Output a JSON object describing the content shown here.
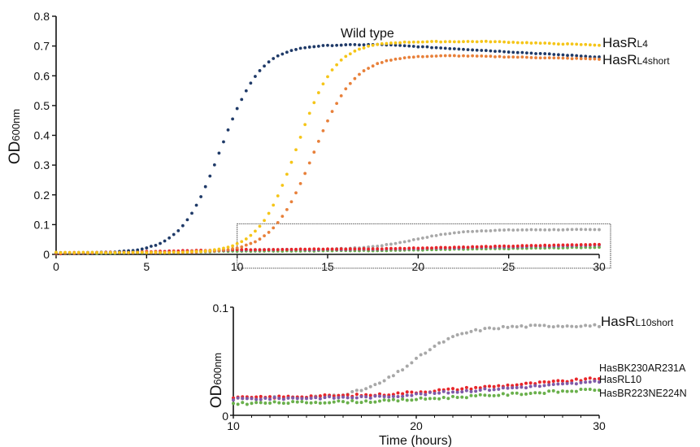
{
  "chart_data": [
    {
      "type": "scatter",
      "ylabel": "OD",
      "ylabel_sub": "600nm",
      "xlim": [
        0,
        30
      ],
      "ylim": [
        0,
        0.8
      ],
      "xticks": [
        0,
        5,
        10,
        15,
        20,
        25,
        30
      ],
      "xtick_labels": [
        "0",
        "5",
        "10",
        "15",
        "20",
        "25",
        "30"
      ],
      "yticks": [
        0,
        0.1,
        0.2,
        0.3,
        0.4,
        0.5,
        0.6,
        0.7,
        0.8
      ],
      "ytick_labels": [
        "0",
        "0.1",
        "0.2",
        "0.3",
        "0.4",
        "0.5",
        "0.6",
        "0.7",
        "0.8"
      ],
      "grid": false,
      "legend": "none",
      "inset_box": {
        "x": [
          10,
          30
        ],
        "y": [
          0,
          0.1
        ]
      },
      "annotations": [
        {
          "text": "Wild type",
          "x": 15.8,
          "y": 0.705
        },
        {
          "main": "HasR",
          "sub": "L4",
          "series": "HasRL4"
        },
        {
          "main": "HasR",
          "sub": "L4short",
          "series": "HasRL4short"
        }
      ],
      "series": [
        {
          "name": "Wild type",
          "color": "#1f3a68",
          "model": {
            "kind": "logistic",
            "base": 0.005,
            "top": 0.705,
            "mid": 9.1,
            "rate": 0.9,
            "decline_start": 18,
            "decline_slope": -0.0035
          }
        },
        {
          "name": "HasRL4",
          "color": "#f5c518",
          "model": {
            "kind": "logistic",
            "base": 0.006,
            "top": 0.715,
            "mid": 13.3,
            "rate": 0.95,
            "decline_start": 24,
            "decline_slope": -0.002
          }
        },
        {
          "name": "HasRL4short",
          "color": "#e8803a",
          "model": {
            "kind": "logistic",
            "base": 0.006,
            "top": 0.668,
            "mid": 14.2,
            "rate": 0.88,
            "decline_start": 22,
            "decline_slope": -0.0015
          }
        },
        {
          "name": "HasRL10short",
          "color": "#a8a8a8",
          "model": {
            "kind": "logistic",
            "base": 0.016,
            "top": 0.083,
            "mid": 19.8,
            "rate": 0.75
          }
        },
        {
          "name": "HasBK230AR231A",
          "color": "#e8262a",
          "model": {
            "kind": "linear",
            "y0": 0.003,
            "y10": 0.016,
            "y18": 0.019,
            "y30": 0.034
          }
        },
        {
          "name": "HasRL10",
          "color": "#7f5aa8",
          "model": {
            "kind": "linear",
            "y0": 0.003,
            "y10": 0.015,
            "y18": 0.017,
            "y30": 0.031
          }
        },
        {
          "name": "HasBR223NE224N",
          "color": "#6ab04c",
          "model": {
            "kind": "linear",
            "y0": 0.002,
            "y10": 0.011,
            "y18": 0.013,
            "y30": 0.024
          }
        }
      ]
    },
    {
      "type": "scatter",
      "xlabel": "Time (hours)",
      "ylabel": "OD",
      "ylabel_sub": "600nm",
      "xlim": [
        10,
        30
      ],
      "ylim": [
        0,
        0.1
      ],
      "xticks": [
        10,
        20,
        30
      ],
      "xtick_labels": [
        "10",
        "20",
        "30"
      ],
      "yticks": [
        0,
        0.1
      ],
      "ytick_labels": [
        "0",
        "0.1"
      ],
      "grid": false,
      "legend": "none",
      "annotations": [
        {
          "main": "HasR",
          "sub": "L10short",
          "series": "HasRL10short"
        },
        {
          "main": "HasBK230AR231A",
          "sub": "",
          "series": "HasBK230AR231A"
        },
        {
          "main": "HasRL10",
          "sub": "",
          "series": "HasRL10"
        },
        {
          "main": "HasBR223NE224N",
          "sub": "",
          "series": "HasBR223NE224N"
        }
      ],
      "series_ref": [
        "HasRL10short",
        "HasBK230AR231A",
        "HasRL10",
        "HasBR223NE224N"
      ]
    }
  ]
}
